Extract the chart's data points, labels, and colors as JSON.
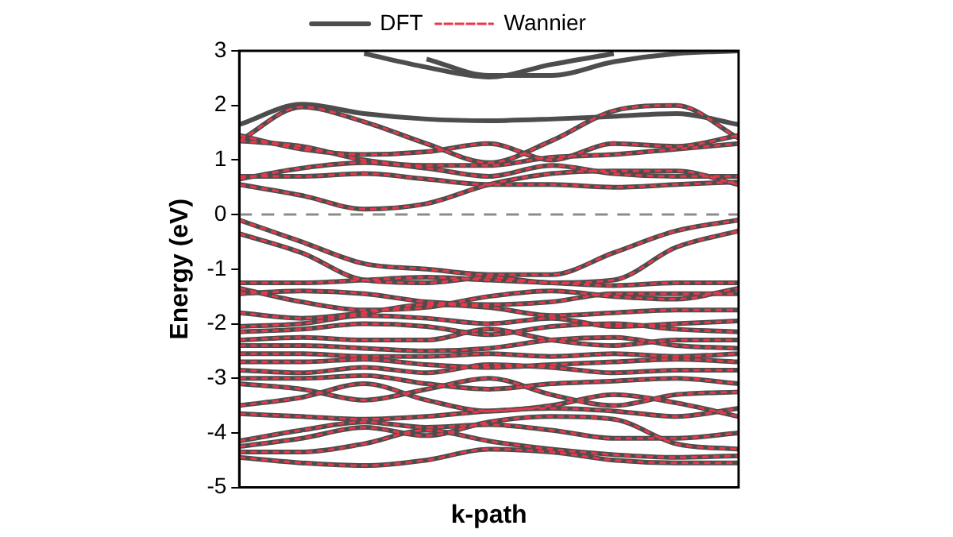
{
  "chart_data": {
    "type": "line",
    "xlabel": "k-path",
    "ylabel": "Energy (eV)",
    "categories": [
      null,
      null,
      null,
      null,
      null,
      null,
      null,
      null,
      null
    ],
    "ylim": [
      -5,
      3
    ],
    "yticks": [
      -5,
      -4,
      -3,
      -2,
      -1,
      0,
      1,
      2,
      3
    ],
    "tick_labels": "y",
    "grid": false,
    "legend": "top",
    "marker": "none",
    "ref_lines": [
      {
        "axis": "y",
        "value": 0,
        "color": "#8c8c8c",
        "line_style": "dashed"
      }
    ],
    "series": [
      {
        "name": "DFT",
        "color": "#4d4d4d",
        "line_style": "solid",
        "values": [
          null,
          null,
          2.95,
          2.7,
          2.52,
          2.75,
          2.95,
          null,
          null
        ]
      },
      {
        "color": "#4d4d4d",
        "line_style": "solid",
        "values": [
          null,
          null,
          null,
          2.85,
          2.55,
          2.55,
          2.8,
          2.95,
          3.0
        ]
      },
      {
        "color": "#4d4d4d",
        "line_style": "solid",
        "values": [
          1.65,
          2.02,
          1.85,
          1.75,
          1.72,
          1.75,
          1.8,
          1.85,
          1.65
        ]
      },
      {
        "color": "#4d4d4d",
        "line_style": "solid",
        "values": [
          1.35,
          1.97,
          1.7,
          1.3,
          0.95,
          1.35,
          1.9,
          2.0,
          1.4
        ]
      },
      {
        "color": "#4d4d4d",
        "line_style": "solid",
        "values": [
          1.45,
          1.2,
          1.1,
          1.15,
          1.3,
          1.0,
          1.3,
          1.25,
          1.45
        ]
      },
      {
        "color": "#4d4d4d",
        "line_style": "solid",
        "values": [
          1.35,
          1.25,
          1.0,
          0.9,
          0.9,
          1.05,
          1.1,
          1.2,
          1.3
        ]
      },
      {
        "color": "#4d4d4d",
        "line_style": "solid",
        "values": [
          0.65,
          0.85,
          0.95,
          0.85,
          0.7,
          0.9,
          0.75,
          0.7,
          0.7
        ]
      },
      {
        "color": "#4d4d4d",
        "line_style": "solid",
        "values": [
          0.55,
          0.35,
          0.1,
          0.2,
          0.55,
          0.75,
          0.8,
          0.8,
          0.55
        ]
      },
      {
        "color": "#4d4d4d",
        "line_style": "solid",
        "values": [
          0.7,
          0.7,
          0.75,
          0.65,
          0.55,
          0.55,
          0.5,
          0.55,
          0.6
        ]
      },
      {
        "color": "#4d4d4d",
        "line_style": "solid",
        "values": [
          -0.1,
          -0.5,
          -0.9,
          -1.0,
          -1.1,
          -1.1,
          -0.7,
          -0.3,
          -0.1
        ]
      },
      {
        "color": "#4d4d4d",
        "line_style": "solid",
        "values": [
          -0.35,
          -0.7,
          -1.2,
          -1.25,
          -1.15,
          -1.25,
          -1.2,
          -0.6,
          -0.3
        ]
      },
      {
        "color": "#4d4d4d",
        "line_style": "solid",
        "values": [
          -1.25,
          -1.25,
          -1.2,
          -1.15,
          -1.2,
          -1.25,
          -1.3,
          -1.25,
          -1.25
        ]
      },
      {
        "color": "#4d4d4d",
        "line_style": "solid",
        "values": [
          -1.45,
          -1.4,
          -1.45,
          -1.6,
          -1.65,
          -1.6,
          -1.45,
          -1.45,
          -1.45
        ]
      },
      {
        "color": "#4d4d4d",
        "line_style": "solid",
        "values": [
          -1.35,
          -1.6,
          -1.75,
          -1.7,
          -1.5,
          -1.4,
          -1.5,
          -1.55,
          -1.35
        ]
      },
      {
        "color": "#4d4d4d",
        "line_style": "solid",
        "values": [
          -1.8,
          -1.9,
          -1.8,
          -1.65,
          -1.7,
          -1.85,
          -1.8,
          -1.75,
          -1.75
        ]
      },
      {
        "color": "#4d4d4d",
        "line_style": "solid",
        "values": [
          -2.05,
          -2.0,
          -1.85,
          -1.9,
          -2.0,
          -1.9,
          -2.05,
          -2.0,
          -1.95
        ]
      },
      {
        "color": "#4d4d4d",
        "line_style": "solid",
        "values": [
          -2.15,
          -2.1,
          -2.0,
          -2.05,
          -2.2,
          -2.05,
          -2.0,
          -2.1,
          -2.15
        ]
      },
      {
        "color": "#4d4d4d",
        "line_style": "solid",
        "values": [
          -2.3,
          -2.25,
          -2.3,
          -2.3,
          -2.1,
          -2.3,
          -2.4,
          -2.3,
          -2.3
        ]
      },
      {
        "color": "#4d4d4d",
        "line_style": "solid",
        "values": [
          -2.4,
          -2.4,
          -2.45,
          -2.5,
          -2.45,
          -2.3,
          -2.25,
          -2.4,
          -2.45
        ]
      },
      {
        "color": "#4d4d4d",
        "line_style": "solid",
        "values": [
          -2.55,
          -2.55,
          -2.6,
          -2.6,
          -2.55,
          -2.6,
          -2.55,
          -2.6,
          -2.55
        ]
      },
      {
        "color": "#4d4d4d",
        "line_style": "solid",
        "values": [
          -2.7,
          -2.7,
          -2.65,
          -2.75,
          -2.8,
          -2.75,
          -2.7,
          -2.65,
          -2.7
        ]
      },
      {
        "color": "#4d4d4d",
        "line_style": "solid",
        "values": [
          -2.85,
          -2.9,
          -2.8,
          -2.9,
          -2.75,
          -2.8,
          -2.9,
          -2.85,
          -2.85
        ]
      },
      {
        "color": "#4d4d4d",
        "line_style": "solid",
        "values": [
          -3.0,
          -3.0,
          -2.95,
          -3.1,
          -3.2,
          -3.1,
          -3.05,
          -3.0,
          -3.1
        ]
      },
      {
        "color": "#4d4d4d",
        "line_style": "solid",
        "values": [
          -3.1,
          -3.2,
          -3.4,
          -3.2,
          -3.0,
          -3.3,
          -3.5,
          -3.3,
          -3.25
        ]
      },
      {
        "color": "#4d4d4d",
        "line_style": "solid",
        "values": [
          -3.5,
          -3.35,
          -3.1,
          -3.4,
          -3.6,
          -3.5,
          -3.3,
          -3.45,
          -3.7
        ]
      },
      {
        "color": "#4d4d4d",
        "line_style": "solid",
        "values": [
          -3.65,
          -3.7,
          -3.75,
          -3.7,
          -3.6,
          -3.55,
          -3.6,
          -3.7,
          -3.55
        ]
      },
      {
        "color": "#4d4d4d",
        "line_style": "solid",
        "values": [
          -4.15,
          -3.95,
          -3.8,
          -3.9,
          -3.85,
          -3.95,
          -4.1,
          -4.1,
          -4.0
        ]
      },
      {
        "color": "#4d4d4d",
        "line_style": "solid",
        "values": [
          -4.25,
          -4.1,
          -3.9,
          -4.05,
          -3.8,
          -3.7,
          -3.75,
          -4.2,
          -4.3
        ]
      },
      {
        "color": "#4d4d4d",
        "line_style": "solid",
        "values": [
          -4.35,
          -4.35,
          -4.2,
          -3.95,
          -4.15,
          -4.3,
          -4.4,
          -4.45,
          -4.42
        ]
      },
      {
        "color": "#4d4d4d",
        "line_style": "solid",
        "values": [
          -4.45,
          -4.55,
          -4.6,
          -4.5,
          -4.3,
          -4.35,
          -4.5,
          -4.55,
          -4.55
        ]
      },
      {
        "name": "Wannier",
        "color": "#e8394a",
        "line_style": "dashed",
        "values": [
          1.35,
          1.97,
          1.7,
          1.3,
          0.95,
          1.35,
          1.9,
          2.0,
          1.4
        ]
      },
      {
        "color": "#e8394a",
        "line_style": "dashed",
        "values": [
          1.45,
          1.2,
          1.1,
          1.15,
          1.3,
          1.0,
          1.3,
          1.25,
          1.45
        ]
      },
      {
        "color": "#e8394a",
        "line_style": "dashed",
        "values": [
          1.35,
          1.25,
          1.0,
          0.9,
          0.9,
          1.05,
          1.1,
          1.2,
          1.3
        ]
      },
      {
        "color": "#e8394a",
        "line_style": "dashed",
        "values": [
          0.65,
          0.85,
          0.95,
          0.85,
          0.7,
          0.9,
          0.75,
          0.7,
          0.7
        ]
      },
      {
        "color": "#e8394a",
        "line_style": "dashed",
        "values": [
          0.55,
          0.35,
          0.1,
          0.2,
          0.55,
          0.75,
          0.8,
          0.8,
          0.55
        ]
      },
      {
        "color": "#e8394a",
        "line_style": "dashed",
        "values": [
          0.7,
          0.7,
          0.75,
          0.65,
          0.55,
          0.55,
          0.5,
          0.55,
          0.6
        ]
      },
      {
        "color": "#e8394a",
        "line_style": "dashed",
        "values": [
          -0.1,
          -0.5,
          -0.9,
          -1.0,
          -1.1,
          -1.1,
          -0.7,
          -0.3,
          -0.1
        ]
      },
      {
        "color": "#e8394a",
        "line_style": "dashed",
        "values": [
          -0.35,
          -0.7,
          -1.2,
          -1.25,
          -1.15,
          -1.25,
          -1.2,
          -0.6,
          -0.3
        ]
      },
      {
        "color": "#e8394a",
        "line_style": "dashed",
        "values": [
          -1.25,
          -1.25,
          -1.2,
          -1.15,
          -1.2,
          -1.25,
          -1.3,
          -1.25,
          -1.25
        ]
      },
      {
        "color": "#e8394a",
        "line_style": "dashed",
        "values": [
          -1.45,
          -1.4,
          -1.45,
          -1.6,
          -1.65,
          -1.6,
          -1.45,
          -1.45,
          -1.45
        ]
      },
      {
        "color": "#e8394a",
        "line_style": "dashed",
        "values": [
          -1.35,
          -1.6,
          -1.75,
          -1.7,
          -1.5,
          -1.4,
          -1.5,
          -1.55,
          -1.35
        ]
      },
      {
        "color": "#e8394a",
        "line_style": "dashed",
        "values": [
          -1.8,
          -1.9,
          -1.8,
          -1.65,
          -1.7,
          -1.85,
          -1.8,
          -1.75,
          -1.75
        ]
      },
      {
        "color": "#e8394a",
        "line_style": "dashed",
        "values": [
          -2.05,
          -2.0,
          -1.85,
          -1.9,
          -2.0,
          -1.9,
          -2.05,
          -2.0,
          -1.95
        ]
      },
      {
        "color": "#e8394a",
        "line_style": "dashed",
        "values": [
          -2.15,
          -2.1,
          -2.0,
          -2.05,
          -2.2,
          -2.05,
          -2.0,
          -2.1,
          -2.15
        ]
      },
      {
        "color": "#e8394a",
        "line_style": "dashed",
        "values": [
          -2.3,
          -2.25,
          -2.3,
          -2.3,
          -2.1,
          -2.3,
          -2.4,
          -2.3,
          -2.3
        ]
      },
      {
        "color": "#e8394a",
        "line_style": "dashed",
        "values": [
          -2.4,
          -2.4,
          -2.45,
          -2.5,
          -2.45,
          -2.3,
          -2.25,
          -2.4,
          -2.45
        ]
      },
      {
        "color": "#e8394a",
        "line_style": "dashed",
        "values": [
          -2.55,
          -2.55,
          -2.6,
          -2.6,
          -2.55,
          -2.6,
          -2.55,
          -2.6,
          -2.55
        ]
      },
      {
        "color": "#e8394a",
        "line_style": "dashed",
        "values": [
          -2.7,
          -2.7,
          -2.65,
          -2.75,
          -2.8,
          -2.75,
          -2.7,
          -2.65,
          -2.7
        ]
      },
      {
        "color": "#e8394a",
        "line_style": "dashed",
        "values": [
          -2.85,
          -2.9,
          -2.8,
          -2.9,
          -2.75,
          -2.8,
          -2.9,
          -2.85,
          -2.85
        ]
      },
      {
        "color": "#e8394a",
        "line_style": "dashed",
        "values": [
          -3.0,
          -3.0,
          -2.95,
          -3.1,
          -3.2,
          -3.1,
          -3.05,
          -3.0,
          -3.1
        ]
      },
      {
        "color": "#e8394a",
        "line_style": "dashed",
        "values": [
          -3.1,
          -3.2,
          -3.4,
          -3.2,
          -3.0,
          -3.3,
          -3.5,
          -3.3,
          -3.25
        ]
      },
      {
        "color": "#e8394a",
        "line_style": "dashed",
        "values": [
          -3.5,
          -3.35,
          -3.1,
          -3.4,
          -3.6,
          -3.5,
          -3.3,
          -3.45,
          -3.7
        ]
      },
      {
        "color": "#e8394a",
        "line_style": "dashed",
        "values": [
          -3.65,
          -3.7,
          -3.75,
          -3.7,
          -3.6,
          -3.55,
          -3.6,
          -3.7,
          -3.55
        ]
      },
      {
        "color": "#e8394a",
        "line_style": "dashed",
        "values": [
          -4.15,
          -3.95,
          -3.8,
          -3.9,
          -3.85,
          -3.95,
          -4.1,
          -4.1,
          -4.0
        ]
      },
      {
        "color": "#e8394a",
        "line_style": "dashed",
        "values": [
          -4.25,
          -4.1,
          -3.9,
          -4.05,
          -3.8,
          -3.7,
          -3.75,
          -4.2,
          -4.3
        ]
      },
      {
        "color": "#e8394a",
        "line_style": "dashed",
        "values": [
          -4.35,
          -4.35,
          -4.2,
          -3.95,
          -4.15,
          -4.3,
          -4.4,
          -4.45,
          -4.42
        ]
      },
      {
        "color": "#e8394a",
        "line_style": "dashed",
        "values": [
          -4.45,
          -4.55,
          -4.6,
          -4.5,
          -4.3,
          -4.35,
          -4.5,
          -4.55,
          -4.55
        ]
      }
    ]
  }
}
